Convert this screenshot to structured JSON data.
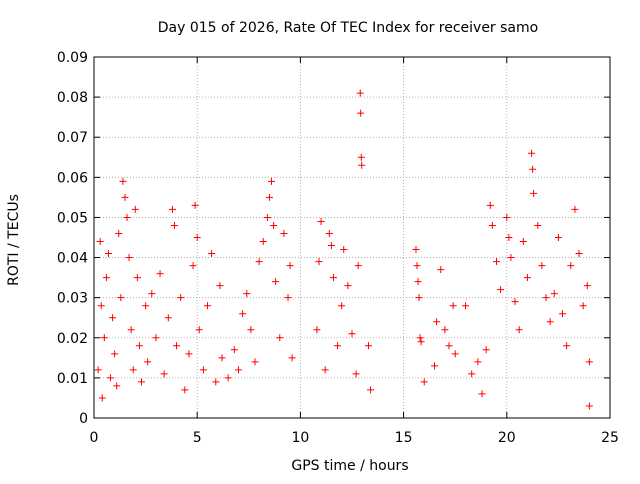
{
  "chart_data": {
    "type": "scatter",
    "title": "Day 015 of 2026, Rate Of TEC Index for receiver samo",
    "xlabel": "GPS time / hours",
    "ylabel": "ROTI / TECUs",
    "xlim": [
      0,
      25
    ],
    "ylim": [
      0,
      0.09
    ],
    "x_ticks": [
      0,
      5,
      10,
      15,
      20,
      25
    ],
    "y_ticks": [
      "0",
      "0.01",
      "0.02",
      "0.03",
      "0.04",
      "0.05",
      "0.06",
      "0.07",
      "0.08",
      "0.09"
    ],
    "grid": true,
    "marker": "+",
    "color": "#ff0000",
    "series": [
      {
        "points": [
          [
            0.2,
            0.012
          ],
          [
            0.3,
            0.044
          ],
          [
            0.35,
            0.028
          ],
          [
            0.4,
            0.005
          ],
          [
            0.5,
            0.02
          ],
          [
            0.6,
            0.035
          ],
          [
            0.7,
            0.041
          ],
          [
            0.8,
            0.01
          ],
          [
            0.9,
            0.025
          ],
          [
            1.0,
            0.016
          ],
          [
            1.1,
            0.008
          ],
          [
            1.2,
            0.046
          ],
          [
            1.3,
            0.03
          ],
          [
            1.4,
            0.059
          ],
          [
            1.5,
            0.055
          ],
          [
            1.6,
            0.05
          ],
          [
            1.7,
            0.04
          ],
          [
            1.8,
            0.022
          ],
          [
            1.9,
            0.012
          ],
          [
            2.0,
            0.052
          ],
          [
            2.1,
            0.035
          ],
          [
            2.2,
            0.018
          ],
          [
            2.3,
            0.009
          ],
          [
            2.5,
            0.028
          ],
          [
            2.6,
            0.014
          ],
          [
            2.8,
            0.031
          ],
          [
            3.0,
            0.02
          ],
          [
            3.2,
            0.036
          ],
          [
            3.4,
            0.011
          ],
          [
            3.6,
            0.025
          ],
          [
            3.8,
            0.052
          ],
          [
            3.9,
            0.048
          ],
          [
            4.0,
            0.018
          ],
          [
            4.2,
            0.03
          ],
          [
            4.4,
            0.007
          ],
          [
            4.6,
            0.016
          ],
          [
            4.8,
            0.038
          ],
          [
            4.9,
            0.053
          ],
          [
            5.0,
            0.045
          ],
          [
            5.1,
            0.022
          ],
          [
            5.3,
            0.012
          ],
          [
            5.5,
            0.028
          ],
          [
            5.7,
            0.041
          ],
          [
            5.9,
            0.009
          ],
          [
            6.1,
            0.033
          ],
          [
            6.2,
            0.015
          ],
          [
            6.5,
            0.01
          ],
          [
            6.8,
            0.017
          ],
          [
            7.0,
            0.012
          ],
          [
            7.2,
            0.026
          ],
          [
            7.4,
            0.031
          ],
          [
            7.6,
            0.022
          ],
          [
            7.8,
            0.014
          ],
          [
            8.0,
            0.039
          ],
          [
            8.2,
            0.044
          ],
          [
            8.4,
            0.05
          ],
          [
            8.5,
            0.055
          ],
          [
            8.6,
            0.059
          ],
          [
            8.7,
            0.048
          ],
          [
            8.8,
            0.034
          ],
          [
            9.0,
            0.02
          ],
          [
            9.2,
            0.046
          ],
          [
            9.4,
            0.03
          ],
          [
            9.5,
            0.038
          ],
          [
            9.6,
            0.015
          ],
          [
            10.8,
            0.022
          ],
          [
            10.9,
            0.039
          ],
          [
            11.0,
            0.049
          ],
          [
            11.2,
            0.012
          ],
          [
            11.4,
            0.046
          ],
          [
            11.5,
            0.043
          ],
          [
            11.6,
            0.035
          ],
          [
            11.8,
            0.018
          ],
          [
            12.0,
            0.028
          ],
          [
            12.1,
            0.042
          ],
          [
            12.3,
            0.033
          ],
          [
            12.5,
            0.021
          ],
          [
            12.7,
            0.011
          ],
          [
            12.8,
            0.038
          ],
          [
            12.9,
            0.081
          ],
          [
            12.92,
            0.076
          ],
          [
            12.95,
            0.065
          ],
          [
            12.97,
            0.063
          ],
          [
            13.3,
            0.018
          ],
          [
            13.4,
            0.007
          ],
          [
            15.6,
            0.042
          ],
          [
            15.65,
            0.038
          ],
          [
            15.7,
            0.034
          ],
          [
            15.75,
            0.03
          ],
          [
            15.8,
            0.02
          ],
          [
            15.85,
            0.019
          ],
          [
            16.0,
            0.009
          ],
          [
            16.5,
            0.013
          ],
          [
            16.6,
            0.024
          ],
          [
            16.8,
            0.037
          ],
          [
            17.0,
            0.022
          ],
          [
            17.2,
            0.018
          ],
          [
            17.4,
            0.028
          ],
          [
            17.5,
            0.016
          ],
          [
            18.0,
            0.028
          ],
          [
            18.3,
            0.011
          ],
          [
            18.6,
            0.014
          ],
          [
            18.8,
            0.006
          ],
          [
            19.0,
            0.017
          ],
          [
            19.2,
            0.053
          ],
          [
            19.3,
            0.048
          ],
          [
            19.5,
            0.039
          ],
          [
            19.7,
            0.032
          ],
          [
            20.0,
            0.05
          ],
          [
            20.1,
            0.045
          ],
          [
            20.2,
            0.04
          ],
          [
            20.4,
            0.029
          ],
          [
            20.6,
            0.022
          ],
          [
            20.8,
            0.044
          ],
          [
            21.0,
            0.035
          ],
          [
            21.2,
            0.066
          ],
          [
            21.25,
            0.062
          ],
          [
            21.3,
            0.056
          ],
          [
            21.5,
            0.048
          ],
          [
            21.7,
            0.038
          ],
          [
            21.9,
            0.03
          ],
          [
            22.1,
            0.024
          ],
          [
            22.3,
            0.031
          ],
          [
            22.5,
            0.045
          ],
          [
            22.7,
            0.026
          ],
          [
            22.9,
            0.018
          ],
          [
            23.1,
            0.038
          ],
          [
            23.3,
            0.052
          ],
          [
            23.5,
            0.041
          ],
          [
            23.7,
            0.028
          ],
          [
            23.9,
            0.033
          ],
          [
            24.0,
            0.014
          ],
          [
            24.0,
            0.003
          ]
        ]
      }
    ]
  }
}
